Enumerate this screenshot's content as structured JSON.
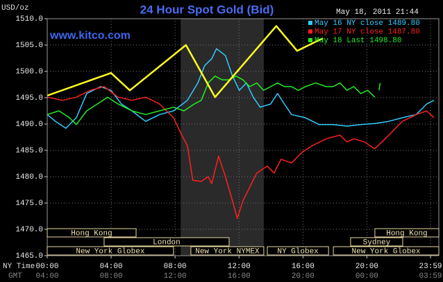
{
  "chart_data": {
    "type": "line",
    "title": "24 Hour Spot Gold (Bid)",
    "watermark": "www.kitco.com",
    "timestamp": "May 18, 2011 21:44",
    "y_label": "USD/oz",
    "x_label": "NY Time",
    "x2_label": "GMT",
    "legend": "top-right",
    "grid": true,
    "xlim": [
      0,
      24.5
    ],
    "ylim": [
      1465,
      1510
    ],
    "xticks": [
      {
        "value": 0,
        "label": "00:00"
      },
      {
        "value": 4,
        "label": "04:00"
      },
      {
        "value": 8,
        "label": "08:00"
      },
      {
        "value": 12,
        "label": "12:00"
      },
      {
        "value": 16,
        "label": "16:00"
      },
      {
        "value": 20,
        "label": "20:00"
      },
      {
        "value": 23.98,
        "label": "23:59"
      }
    ],
    "x2tick_labels": [
      "04:00",
      "08:00",
      "12:00",
      "16:00",
      "20:00",
      "00:00",
      "03:59"
    ],
    "yticks": [
      {
        "value": 1465,
        "label": "1465.0"
      },
      {
        "value": 1470,
        "label": "1470.0"
      },
      {
        "value": 1475,
        "label": "1475.0"
      },
      {
        "value": 1480,
        "label": "1480.0"
      },
      {
        "value": 1485,
        "label": "1485.0"
      },
      {
        "value": 1490,
        "label": "1490.0"
      },
      {
        "value": 1495,
        "label": "1495.0"
      },
      {
        "value": 1500,
        "label": "1500.0"
      },
      {
        "value": 1505,
        "label": "1505.0"
      },
      {
        "value": 1510,
        "label": "1510.0"
      }
    ],
    "shaded": [
      8.35,
      13.55
    ],
    "series": [
      {
        "name": "May 16 NY close 1489.80",
        "color": "#33ccff",
        "x": [
          0,
          0.52,
          1.17,
          1.82,
          2.47,
          3.34,
          3.99,
          4.64,
          5.3,
          6.16,
          7.03,
          7.9,
          8.77,
          9.42,
          9.85,
          10.29,
          10.59,
          11.15,
          11.59,
          12.02,
          12.46,
          12.89,
          13.32,
          13.98,
          14.41,
          14.84,
          15.28,
          16.15,
          17.01,
          17.88,
          18.75,
          19.62,
          20.49,
          21.35,
          22.22,
          23.09,
          23.74,
          24.19
        ],
        "values": [
          1491.8,
          1490.5,
          1489.2,
          1491.2,
          1495.8,
          1497.1,
          1496.4,
          1493.8,
          1492.5,
          1490.5,
          1491.8,
          1492.5,
          1494.5,
          1497.8,
          1501.1,
          1502.4,
          1504.3,
          1503.0,
          1499.1,
          1496.4,
          1497.8,
          1495.1,
          1493.2,
          1493.8,
          1495.8,
          1493.8,
          1491.8,
          1491.2,
          1489.9,
          1489.9,
          1489.6,
          1489.9,
          1490.1,
          1490.5,
          1491.2,
          1491.8,
          1493.8,
          1494.5
        ]
      },
      {
        "name": "May 17 NY close 1487.80",
        "color": "#ff2020",
        "x": [
          0,
          0.95,
          1.82,
          2.69,
          3.56,
          4.43,
          5.3,
          6.16,
          7.03,
          7.9,
          8.42,
          8.77,
          9.11,
          9.64,
          10.07,
          10.29,
          10.72,
          11.15,
          11.59,
          11.89,
          12.24,
          12.67,
          13.11,
          13.76,
          14.19,
          14.63,
          15.28,
          15.93,
          16.58,
          17.45,
          18.32,
          18.75,
          19.18,
          19.84,
          20.49,
          21.14,
          21.79,
          22.22,
          23.09,
          23.74,
          24.19
        ],
        "values": [
          1495.1,
          1494.5,
          1495.1,
          1496.4,
          1497.1,
          1495.1,
          1494.5,
          1495.1,
          1493.8,
          1491.2,
          1487.9,
          1485.9,
          1479.3,
          1479.1,
          1480.0,
          1478.7,
          1483.9,
          1480.0,
          1475.4,
          1472.1,
          1475.4,
          1478.0,
          1480.7,
          1482.0,
          1480.7,
          1483.3,
          1482.6,
          1484.6,
          1485.9,
          1487.2,
          1487.9,
          1486.6,
          1487.2,
          1486.6,
          1485.3,
          1487.2,
          1489.2,
          1490.5,
          1491.8,
          1492.5,
          1491.2
        ]
      },
      {
        "name": "May 18 Last 1498.80",
        "color": "#22ee22",
        "x": [
          0,
          0.74,
          1.39,
          1.82,
          2.47,
          3.13,
          3.78,
          4.43,
          5.3,
          6.16,
          7.03,
          7.9,
          8.55,
          9.2,
          9.64,
          10.07,
          10.5,
          10.94,
          11.37,
          11.81,
          12.24,
          12.67,
          13.11,
          13.54,
          13.98,
          14.41,
          14.84,
          15.28,
          15.71,
          16.15,
          16.8,
          17.45,
          17.88,
          18.32,
          18.75,
          19.18,
          19.62,
          20.05,
          20.49,
          20.6,
          20.75,
          20.83
        ],
        "values": [
          1491.8,
          1492.5,
          1491.2,
          1489.9,
          1492.5,
          1493.8,
          1495.1,
          1493.8,
          1492.5,
          1491.8,
          1492.5,
          1493.2,
          1492.5,
          1493.8,
          1494.5,
          1497.8,
          1499.1,
          1498.4,
          1498.4,
          1499.1,
          1498.4,
          1497.1,
          1497.8,
          1496.4,
          1497.1,
          1497.8,
          1497.1,
          1497.1,
          1496.4,
          1497.1,
          1497.8,
          1497.1,
          1497.1,
          1497.8,
          1496.4,
          1497.1,
          1495.8,
          1496.4,
          1495.1,
          null,
          1496.4,
          1497.8
        ]
      }
    ],
    "overlay": {
      "color": "#ffff22",
      "x": [
        0,
        3.99,
        5.17,
        8.68,
        10.5,
        14.33,
        15.64,
        17.25
      ],
      "values": [
        1495.4,
        1499.7,
        1496.4,
        1505.0,
        1495.1,
        1508.6,
        1503.9,
        1506.3
      ]
    },
    "sessions": [
      [
        {
          "label": "Hong Kong",
          "start": 0,
          "end": 5.56
        },
        {
          "label": "Hong Kong",
          "start": 20.5,
          "end": 24.5
        }
      ],
      [
        {
          "label": "London",
          "start": 3.56,
          "end": 11.38
        },
        {
          "label": "Sydney",
          "start": 18.98,
          "end": 22.24
        }
      ],
      [
        {
          "label": "New York Globex",
          "start": 0,
          "end": 7.9
        },
        {
          "label": "New York NYMEX",
          "start": 8.99,
          "end": 13.55
        },
        {
          "label": "NY Globex",
          "start": 13.77,
          "end": 17.6
        },
        {
          "label": "New York Globex",
          "start": 17.9,
          "end": 24.5
        }
      ]
    ]
  }
}
